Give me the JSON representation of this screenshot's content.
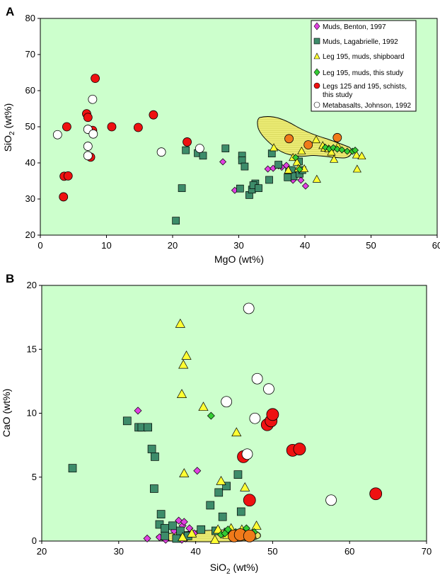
{
  "colors": {
    "plot_bg": "#ccffcc",
    "field_fill": "#f0f07a",
    "muds_benton": "#e040e0",
    "muds_lagabrielle": "#3d8c6a",
    "leg195_shipboard": "#ffff33",
    "leg195_this_study": "#33cc33",
    "schists": "#ee1111",
    "schists_in_field": "#f07a1a",
    "metabasalts": "#ffffff"
  },
  "chart_data": [
    {
      "panel": "A",
      "type": "scatter",
      "xlabel": "MgO (wt%)",
      "ylabel": "SiO2 (wt%)",
      "xlim": [
        0,
        60
      ],
      "ylim": [
        20,
        80
      ],
      "xticks": [
        "0",
        "10",
        "20",
        "30",
        "40",
        "50",
        "60"
      ],
      "yticks": [
        "20",
        "30",
        "40",
        "50",
        "60",
        "70",
        "80"
      ],
      "legend": {
        "placement": "top-right",
        "entries": [
          "Muds, Benton, 1997",
          "Muds, Lagabrielle, 1992",
          "Leg 195, muds, shipboard",
          "Leg 195, muds, this study",
          "Legs 125 and 195, schists, this study",
          "Metabasalts, Johnson, 1992"
        ]
      },
      "series": [
        {
          "name": "Muds, Benton, 1997",
          "marker": "diamond",
          "points": [
            [
              27.6,
              40.3
            ],
            [
              34.4,
              38.3
            ],
            [
              35.2,
              38.5
            ],
            [
              36.0,
              39.2
            ],
            [
              36.5,
              38.8
            ],
            [
              37.2,
              39.3
            ],
            [
              37.8,
              37.0
            ],
            [
              38.5,
              36.6
            ],
            [
              38.2,
              35.2
            ],
            [
              39.4,
              35.2
            ],
            [
              40.1,
              33.6
            ],
            [
              29.4,
              32.4
            ]
          ]
        },
        {
          "name": "Muds, Lagabrielle, 1992",
          "marker": "square",
          "points": [
            [
              20.5,
              24.0
            ],
            [
              21.4,
              33.0
            ],
            [
              22.0,
              43.5
            ],
            [
              23.8,
              42.7
            ],
            [
              24.6,
              42.0
            ],
            [
              28.0,
              44.0
            ],
            [
              30.5,
              42.0
            ],
            [
              30.5,
              40.7
            ],
            [
              30.9,
              39.0
            ],
            [
              30.2,
              32.9
            ],
            [
              31.6,
              31.1
            ],
            [
              32.0,
              32.6
            ],
            [
              32.5,
              34.3
            ],
            [
              32.2,
              33.8
            ],
            [
              33.0,
              33.0
            ],
            [
              34.6,
              35.3
            ],
            [
              35.0,
              42.6
            ],
            [
              36.0,
              39.5
            ],
            [
              37.6,
              37.5
            ],
            [
              38.0,
              38.0
            ],
            [
              38.3,
              36.3
            ],
            [
              37.4,
              36.0
            ],
            [
              39.2,
              37.0
            ],
            [
              39.6,
              38.0
            ],
            [
              39.1,
              40.4
            ]
          ]
        },
        {
          "name": "Leg 195, muds, shipboard",
          "marker": "triangle",
          "points": [
            [
              35.3,
              44.2
            ],
            [
              37.5,
              38.0
            ],
            [
              38.2,
              41.5
            ],
            [
              38.8,
              40.2
            ],
            [
              39.0,
              38.5
            ],
            [
              39.5,
              43.3
            ],
            [
              39.9,
              38.4
            ],
            [
              41.7,
              46.4
            ],
            [
              41.8,
              35.5
            ],
            [
              42.7,
              44.8
            ],
            [
              43.0,
              44.1
            ],
            [
              43.6,
              43.9
            ],
            [
              44.0,
              43.0
            ],
            [
              44.4,
              41.0
            ],
            [
              45.0,
              44.6
            ],
            [
              47.8,
              42.2
            ],
            [
              47.9,
              38.3
            ],
            [
              48.6,
              41.9
            ]
          ]
        },
        {
          "name": "Leg 195, muds, this study",
          "marker": "diamond",
          "points": [
            [
              38.6,
              41.5
            ],
            [
              39.2,
              38.2
            ],
            [
              43.1,
              44.3
            ],
            [
              43.7,
              43.9
            ],
            [
              44.3,
              44.2
            ],
            [
              44.9,
              43.8
            ],
            [
              45.6,
              43.6
            ],
            [
              46.4,
              43.2
            ],
            [
              47.2,
              43.2
            ],
            [
              47.6,
              43.5
            ]
          ]
        },
        {
          "name": "Legs 125 and 195, schists, this study",
          "marker": "circle",
          "points": [
            [
              3.5,
              30.6
            ],
            [
              3.6,
              36.3
            ],
            [
              4.0,
              50.0
            ],
            [
              4.2,
              36.4
            ],
            [
              7.0,
              53.6
            ],
            [
              7.2,
              52.6
            ],
            [
              7.6,
              41.6
            ],
            [
              7.9,
              49.0
            ],
            [
              8.3,
              63.4
            ],
            [
              10.8,
              50.0
            ],
            [
              14.8,
              49.8
            ],
            [
              17.1,
              53.3
            ],
            [
              22.2,
              45.8
            ],
            [
              37.6,
              46.7
            ],
            [
              40.5,
              45.0
            ],
            [
              44.9,
              47.0
            ]
          ]
        },
        {
          "name": "Metabasalts, Johnson, 1992",
          "marker": "circle-open",
          "points": [
            [
              2.6,
              47.8
            ],
            [
              7.2,
              49.3
            ],
            [
              7.2,
              44.6
            ],
            [
              7.2,
              42.0
            ],
            [
              7.9,
              57.6
            ],
            [
              8.0,
              48.0
            ],
            [
              18.3,
              43.0
            ],
            [
              24.1,
              44.0
            ]
          ]
        }
      ]
    },
    {
      "panel": "B",
      "type": "scatter",
      "xlabel": "SiO2 (wt%)",
      "ylabel": "CaO (wt%)",
      "xlim": [
        20,
        70
      ],
      "ylim": [
        0,
        20
      ],
      "xticks": [
        "20",
        "30",
        "40",
        "50",
        "60",
        "70"
      ],
      "yticks": [
        "0",
        "5",
        "10",
        "15",
        "20"
      ],
      "series": [
        {
          "name": "Muds, Benton, 1997",
          "marker": "diamond",
          "points": [
            [
              32.5,
              10.2
            ],
            [
              33.7,
              0.2
            ],
            [
              35.3,
              0.3
            ],
            [
              36.1,
              0.1
            ],
            [
              37.2,
              0.8
            ],
            [
              37.8,
              1.6
            ],
            [
              38.3,
              1.2
            ],
            [
              38.5,
              1.5
            ],
            [
              38.7,
              0.2
            ],
            [
              39.2,
              1.0
            ],
            [
              40.2,
              5.5
            ],
            [
              37.6,
              0.3
            ],
            [
              38.2,
              0.1
            ],
            [
              39.8,
              0.6
            ]
          ]
        },
        {
          "name": "Muds, Lagabrielle, 1992",
          "marker": "square",
          "points": [
            [
              24.0,
              5.7
            ],
            [
              31.1,
              9.4
            ],
            [
              32.6,
              8.9
            ],
            [
              33.0,
              8.9
            ],
            [
              33.8,
              8.9
            ],
            [
              34.3,
              7.2
            ],
            [
              34.6,
              4.1
            ],
            [
              34.7,
              6.6
            ],
            [
              35.3,
              1.3
            ],
            [
              35.5,
              2.1
            ],
            [
              36.0,
              1.0
            ],
            [
              36.0,
              0.4
            ],
            [
              37.0,
              1.2
            ],
            [
              37.5,
              0.2
            ],
            [
              38.0,
              0.8
            ],
            [
              39.0,
              0.4
            ],
            [
              40.7,
              0.9
            ],
            [
              41.9,
              2.8
            ],
            [
              42.6,
              0.8
            ],
            [
              43.0,
              3.8
            ],
            [
              43.5,
              1.9
            ],
            [
              44.0,
              4.3
            ],
            [
              44.2,
              0.7
            ],
            [
              45.5,
              5.2
            ],
            [
              45.9,
              2.3
            ],
            [
              46.3,
              0.4
            ]
          ]
        },
        {
          "name": "Leg 195, muds, shipboard",
          "marker": "triangle",
          "points": [
            [
              38.0,
              17.0
            ],
            [
              38.2,
              11.5
            ],
            [
              38.4,
              13.8
            ],
            [
              38.5,
              5.3
            ],
            [
              38.8,
              14.5
            ],
            [
              41.0,
              10.5
            ],
            [
              42.5,
              0.1
            ],
            [
              42.9,
              0.9
            ],
            [
              43.3,
              4.7
            ],
            [
              44.1,
              0.5
            ],
            [
              44.6,
              1.0
            ],
            [
              45.3,
              8.5
            ],
            [
              46.0,
              0.9
            ],
            [
              46.4,
              4.2
            ],
            [
              47.3,
              0.5
            ],
            [
              47.9,
              1.2
            ],
            [
              38.3,
              0.3
            ],
            [
              39.5,
              0.6
            ]
          ]
        },
        {
          "name": "Leg 195, muds, this study",
          "marker": "diamond",
          "points": [
            [
              42.0,
              9.8
            ],
            [
              43.3,
              0.5
            ],
            [
              43.8,
              0.6
            ],
            [
              44.2,
              0.9
            ],
            [
              44.8,
              0.3
            ],
            [
              45.2,
              0.7
            ],
            [
              45.9,
              0.5
            ],
            [
              46.6,
              1.0
            ],
            [
              47.1,
              0.2
            ],
            [
              47.6,
              0.7
            ]
          ]
        },
        {
          "name": "Legs 125 and 195, schists, this study",
          "marker": "circle",
          "points": [
            [
              45.0,
              0.4
            ],
            [
              45.8,
              0.5
            ],
            [
              46.2,
              6.6
            ],
            [
              47.0,
              3.2
            ],
            [
              49.3,
              9.1
            ],
            [
              49.8,
              9.4
            ],
            [
              50.0,
              9.9
            ],
            [
              52.6,
              7.1
            ],
            [
              53.5,
              7.2
            ],
            [
              63.4,
              3.7
            ],
            [
              47.0,
              0.4
            ]
          ]
        },
        {
          "name": "Metabasalts, Johnson, 1992",
          "marker": "circle-open",
          "points": [
            [
              44.0,
              10.9
            ],
            [
              46.7,
              6.8
            ],
            [
              46.9,
              18.2
            ],
            [
              47.7,
              9.6
            ],
            [
              48.0,
              12.7
            ],
            [
              49.5,
              11.9
            ],
            [
              57.6,
              3.2
            ]
          ]
        }
      ]
    }
  ]
}
